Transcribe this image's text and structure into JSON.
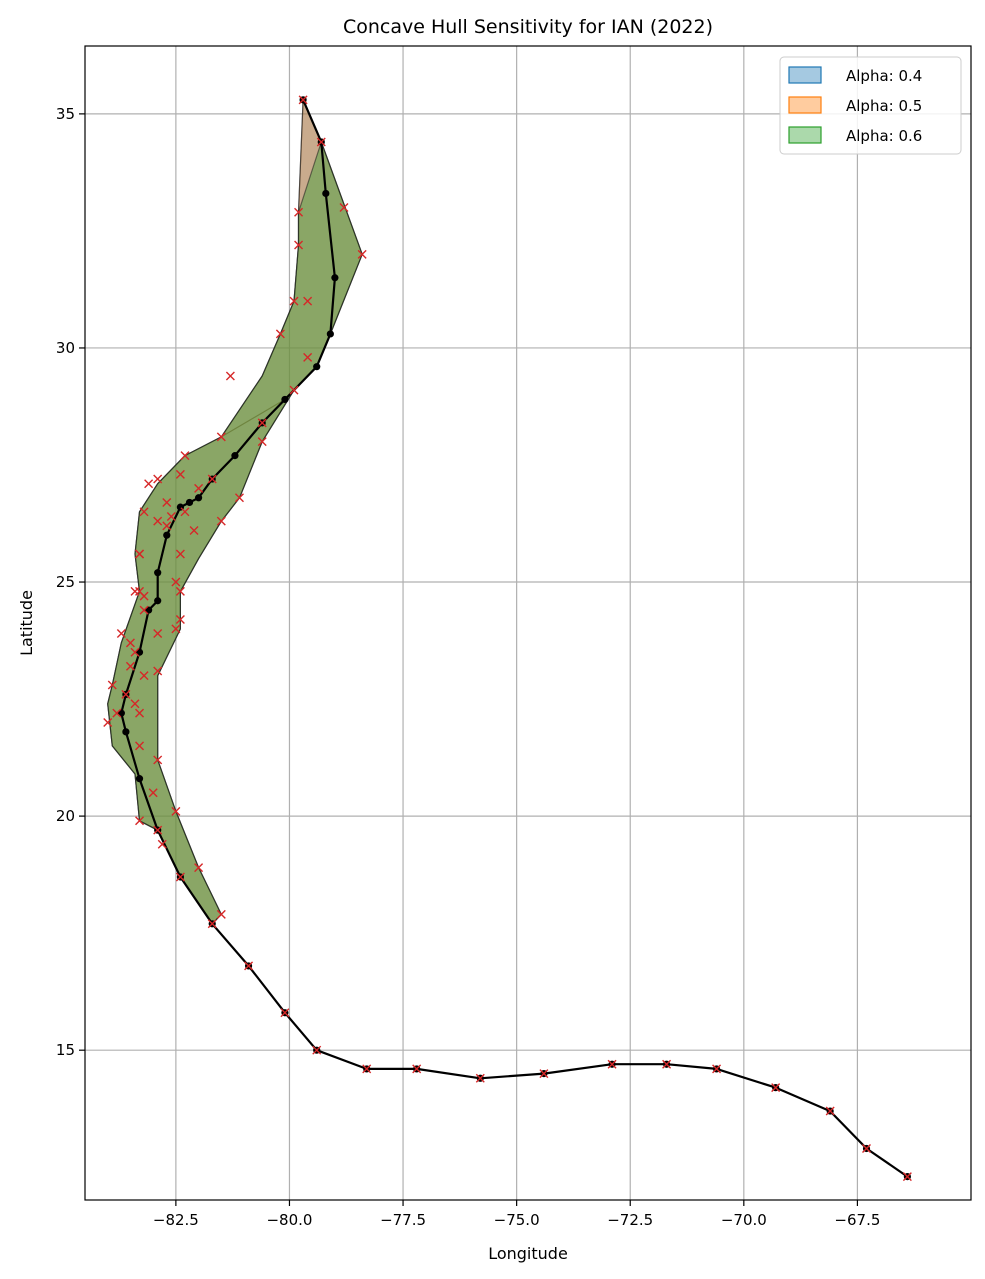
{
  "chart_data": {
    "type": "scatter",
    "title": "Concave Hull Sensitivity for IAN (2022)",
    "xlabel": "Longitude",
    "ylabel": "Latitude",
    "xlim": [
      -84.5,
      -65.0
    ],
    "ylim": [
      11.8,
      36.45
    ],
    "x_ticks": [
      -82.5,
      -80.0,
      -77.5,
      -75.0,
      -72.5,
      -70.0,
      -67.5
    ],
    "x_tick_labels": [
      "−82.5",
      "−80.0",
      "−77.5",
      "−75.0",
      "−72.5",
      "−70.0",
      "−67.5"
    ],
    "y_ticks": [
      15,
      20,
      25,
      30,
      35
    ],
    "y_tick_labels": [
      "15",
      "20",
      "25",
      "30",
      "35"
    ],
    "grid": true,
    "legend_position": "top-right",
    "colors": {
      "alpha_0_4": "#1f77b4",
      "alpha_0_5": "#ff7f0e",
      "alpha_0_6": "#2ca02c",
      "track": "#000000",
      "points": "#d62728"
    },
    "series": [
      {
        "name": "Alpha: 0.4",
        "kind": "hull",
        "polygon": [
          [
            -79.7,
            35.3
          ],
          [
            -79.3,
            34.4
          ],
          [
            -78.4,
            32.0
          ],
          [
            -79.1,
            30.3
          ],
          [
            -79.4,
            29.6
          ],
          [
            -80.1,
            28.9
          ],
          [
            -81.5,
            28.1
          ],
          [
            -82.3,
            27.7
          ],
          [
            -82.9,
            27.1
          ],
          [
            -83.3,
            26.5
          ],
          [
            -83.4,
            25.6
          ],
          [
            -83.3,
            24.8
          ],
          [
            -83.7,
            23.7
          ],
          [
            -83.9,
            22.8
          ],
          [
            -84.0,
            22.4
          ],
          [
            -83.9,
            21.5
          ],
          [
            -83.4,
            20.9
          ],
          [
            -83.3,
            19.9
          ],
          [
            -82.9,
            19.7
          ],
          [
            -82.4,
            18.7
          ],
          [
            -81.7,
            17.7
          ],
          [
            -81.5,
            17.9
          ],
          [
            -82.0,
            18.9
          ],
          [
            -82.5,
            20.1
          ],
          [
            -82.9,
            21.2
          ],
          [
            -82.9,
            23.0
          ],
          [
            -82.4,
            24.0
          ],
          [
            -82.4,
            24.8
          ],
          [
            -82.0,
            25.5
          ],
          [
            -81.5,
            26.3
          ],
          [
            -81.1,
            26.8
          ],
          [
            -80.6,
            28.0
          ],
          [
            -79.9,
            29.1
          ],
          [
            -79.4,
            29.6
          ],
          [
            -80.1,
            28.9
          ],
          [
            -81.5,
            28.1
          ],
          [
            -80.6,
            29.4
          ],
          [
            -80.2,
            30.3
          ],
          [
            -79.9,
            31.0
          ],
          [
            -79.8,
            32.2
          ],
          [
            -79.8,
            32.9
          ],
          [
            -79.7,
            35.3
          ]
        ]
      },
      {
        "name": "Alpha: 0.5",
        "kind": "hull",
        "polygon": [
          [
            -79.7,
            35.3
          ],
          [
            -79.3,
            34.4
          ],
          [
            -78.4,
            32.0
          ],
          [
            -79.1,
            30.3
          ],
          [
            -79.4,
            29.6
          ],
          [
            -79.9,
            29.1
          ],
          [
            -80.6,
            28.0
          ],
          [
            -81.1,
            26.8
          ],
          [
            -81.5,
            26.3
          ],
          [
            -82.0,
            25.5
          ],
          [
            -82.4,
            24.8
          ],
          [
            -82.4,
            24.0
          ],
          [
            -82.9,
            23.0
          ],
          [
            -82.9,
            21.2
          ],
          [
            -82.5,
            20.1
          ],
          [
            -82.0,
            18.9
          ],
          [
            -81.5,
            17.9
          ],
          [
            -81.7,
            17.7
          ],
          [
            -82.4,
            18.7
          ],
          [
            -82.9,
            19.7
          ],
          [
            -83.3,
            19.9
          ],
          [
            -83.4,
            20.9
          ],
          [
            -83.9,
            21.5
          ],
          [
            -84.0,
            22.4
          ],
          [
            -83.9,
            22.8
          ],
          [
            -83.7,
            23.7
          ],
          [
            -83.3,
            24.8
          ],
          [
            -83.4,
            25.6
          ],
          [
            -83.3,
            26.5
          ],
          [
            -82.9,
            27.1
          ],
          [
            -82.3,
            27.7
          ],
          [
            -81.5,
            28.1
          ],
          [
            -80.6,
            29.4
          ],
          [
            -80.2,
            30.3
          ],
          [
            -79.9,
            31.0
          ],
          [
            -79.8,
            32.2
          ],
          [
            -79.8,
            32.9
          ],
          [
            -79.7,
            35.3
          ]
        ]
      },
      {
        "name": "Alpha: 0.6",
        "kind": "hull",
        "polygon": [
          [
            -79.3,
            34.4
          ],
          [
            -78.4,
            32.0
          ],
          [
            -79.1,
            30.3
          ],
          [
            -79.4,
            29.6
          ],
          [
            -79.9,
            29.1
          ],
          [
            -80.6,
            28.0
          ],
          [
            -81.1,
            26.8
          ],
          [
            -81.5,
            26.3
          ],
          [
            -82.0,
            25.5
          ],
          [
            -82.4,
            24.8
          ],
          [
            -82.4,
            24.0
          ],
          [
            -82.9,
            23.0
          ],
          [
            -82.9,
            21.2
          ],
          [
            -82.5,
            20.1
          ],
          [
            -82.0,
            18.9
          ],
          [
            -81.5,
            17.9
          ],
          [
            -81.7,
            17.7
          ],
          [
            -82.4,
            18.7
          ],
          [
            -82.9,
            19.7
          ],
          [
            -83.3,
            19.9
          ],
          [
            -83.4,
            20.9
          ],
          [
            -83.9,
            21.5
          ],
          [
            -84.0,
            22.4
          ],
          [
            -83.9,
            22.8
          ],
          [
            -83.7,
            23.7
          ],
          [
            -83.3,
            24.8
          ],
          [
            -83.4,
            25.6
          ],
          [
            -83.3,
            26.5
          ],
          [
            -82.9,
            27.1
          ],
          [
            -82.3,
            27.7
          ],
          [
            -81.5,
            28.1
          ],
          [
            -80.6,
            29.4
          ],
          [
            -80.2,
            30.3
          ],
          [
            -79.9,
            31.0
          ],
          [
            -79.8,
            32.2
          ],
          [
            -79.8,
            32.9
          ],
          [
            -79.3,
            34.4
          ]
        ]
      },
      {
        "kind": "track",
        "x": [
          -66.4,
          -67.3,
          -68.1,
          -69.3,
          -70.6,
          -71.7,
          -72.9,
          -74.4,
          -75.8,
          -77.2,
          -78.3,
          -79.4,
          -80.1,
          -80.9,
          -81.7,
          -82.4,
          -82.9,
          -83.3,
          -83.6,
          -83.7,
          -83.6,
          -83.3,
          -83.1,
          -82.9,
          -82.9,
          -82.7,
          -82.4,
          -82.2,
          -82.0,
          -81.7,
          -81.2,
          -80.6,
          -80.1,
          -79.4,
          -79.1,
          -79.0,
          -79.2,
          -79.3,
          -79.7
        ],
        "y": [
          12.3,
          12.9,
          13.7,
          14.2,
          14.6,
          14.7,
          14.7,
          14.5,
          14.4,
          14.6,
          14.6,
          15.0,
          15.8,
          16.8,
          17.7,
          18.7,
          19.7,
          20.8,
          21.8,
          22.2,
          22.6,
          23.5,
          24.4,
          24.6,
          25.2,
          26.0,
          26.6,
          26.7,
          26.8,
          27.2,
          27.7,
          28.4,
          28.9,
          29.6,
          30.3,
          31.5,
          33.3,
          34.4,
          35.3
        ]
      },
      {
        "kind": "points",
        "x": [
          -66.4,
          -67.3,
          -68.1,
          -69.3,
          -70.6,
          -71.7,
          -72.9,
          -74.4,
          -75.8,
          -77.2,
          -78.3,
          -79.4,
          -80.1,
          -80.9,
          -81.7,
          -81.5,
          -82.0,
          -82.4,
          -82.5,
          -82.8,
          -82.9,
          -83.0,
          -83.3,
          -83.3,
          -83.2,
          -82.9,
          -83.4,
          -83.3,
          -83.6,
          -83.9,
          -83.8,
          -84.0,
          -83.5,
          -83.4,
          -83.2,
          -83.2,
          -83.5,
          -83.3,
          -83.7,
          -83.3,
          -82.9,
          -82.9,
          -82.5,
          -82.4,
          -82.4,
          -82.5,
          -82.4,
          -82.7,
          -83.2,
          -83.3,
          -83.4,
          -83.1,
          -82.9,
          -82.4,
          -82.0,
          -81.7,
          -81.5,
          -81.1,
          -82.3,
          -81.5,
          -82.1,
          -82.7,
          -82.9,
          -82.6,
          -82.3,
          -80.6,
          -81.3,
          -80.6,
          -79.9,
          -79.6,
          -80.2,
          -79.9,
          -79.6,
          -79.8,
          -79.8,
          -78.8,
          -78.4,
          -79.7,
          -79.3
        ],
        "y": [
          12.3,
          12.9,
          13.7,
          14.2,
          14.6,
          14.7,
          14.7,
          14.5,
          14.4,
          14.6,
          14.6,
          15.0,
          15.8,
          16.8,
          17.7,
          17.9,
          18.9,
          18.7,
          20.1,
          19.4,
          19.7,
          20.5,
          19.9,
          21.5,
          23.0,
          21.2,
          22.4,
          22.2,
          22.6,
          22.8,
          22.2,
          22.0,
          23.2,
          23.5,
          24.4,
          24.7,
          23.7,
          24.8,
          23.9,
          25.6,
          23.1,
          23.9,
          24.0,
          24.2,
          24.8,
          25.0,
          25.6,
          26.2,
          26.5,
          25.6,
          24.8,
          27.1,
          27.2,
          27.3,
          27.0,
          27.2,
          28.1,
          26.8,
          27.7,
          26.3,
          26.1,
          26.7,
          26.3,
          26.4,
          26.5,
          28.0,
          29.4,
          28.4,
          29.1,
          29.8,
          30.3,
          31.0,
          31.0,
          32.2,
          32.9,
          33.0,
          32.0,
          35.3,
          34.4
        ]
      }
    ]
  }
}
